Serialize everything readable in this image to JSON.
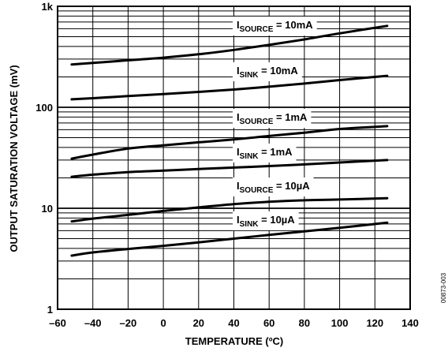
{
  "chart_data": {
    "type": "line",
    "xlabel": "TEMPERATURE (ºC)",
    "ylabel": "OUTPUT SATURATION VOLTAGE (mV)",
    "xlim": [
      -60,
      140
    ],
    "ylim": [
      1,
      1000
    ],
    "yscale": "log",
    "x_ticks": [
      "–60",
      "–40",
      "–20",
      "0",
      "20",
      "40",
      "60",
      "80",
      "100",
      "120",
      "140"
    ],
    "y_ticks": [
      {
        "value": 1,
        "label": "1"
      },
      {
        "value": 10,
        "label": "10"
      },
      {
        "value": 100,
        "label": "100"
      },
      {
        "value": 1000,
        "label": "1k"
      }
    ],
    "grid": true,
    "figure_code": "00873-003",
    "series": [
      {
        "label_main": "I",
        "label_sub": "SOURCE",
        "label_rest": " = 10mA",
        "x": [
          -52,
          -40,
          -20,
          0,
          20,
          40,
          60,
          80,
          100,
          127
        ],
        "y": [
          265,
          275,
          292,
          310,
          335,
          370,
          415,
          470,
          540,
          640
        ]
      },
      {
        "label_main": "I",
        "label_sub": "SINK",
        "label_rest": " = 10mA",
        "x": [
          -52,
          -40,
          -20,
          0,
          20,
          40,
          60,
          80,
          100,
          127
        ],
        "y": [
          120,
          123,
          129,
          135,
          142,
          150,
          160,
          172,
          186,
          205
        ]
      },
      {
        "label_main": "I",
        "label_sub": "SOURCE",
        "label_rest": " = 1mA",
        "x": [
          -52,
          -40,
          -20,
          0,
          20,
          40,
          60,
          80,
          100,
          127
        ],
        "y": [
          31,
          34,
          39,
          42,
          45,
          48,
          52,
          56,
          61,
          65
        ]
      },
      {
        "label_main": "I",
        "label_sub": "SINK",
        "label_rest": " = 1mA",
        "x": [
          -52,
          -40,
          -20,
          0,
          20,
          40,
          60,
          80,
          100,
          127
        ],
        "y": [
          20.5,
          21.5,
          22.8,
          23.6,
          24.5,
          25.3,
          26.2,
          27.2,
          28.4,
          30
        ]
      },
      {
        "label_main": "I",
        "label_sub": "SOURCE",
        "label_rest": " = 10µA",
        "x": [
          -52,
          -40,
          -20,
          0,
          20,
          40,
          60,
          80,
          100,
          127
        ],
        "y": [
          7.4,
          7.9,
          8.6,
          9.4,
          10.2,
          11.0,
          11.6,
          12.0,
          12.2,
          12.6
        ]
      },
      {
        "label_main": "I",
        "label_sub": "SINK",
        "label_rest": " = 10µA",
        "x": [
          -52,
          -40,
          -20,
          0,
          20,
          40,
          60,
          80,
          100,
          127
        ],
        "y": [
          3.4,
          3.65,
          3.95,
          4.25,
          4.6,
          5.0,
          5.45,
          5.9,
          6.4,
          7.2
        ]
      }
    ]
  }
}
